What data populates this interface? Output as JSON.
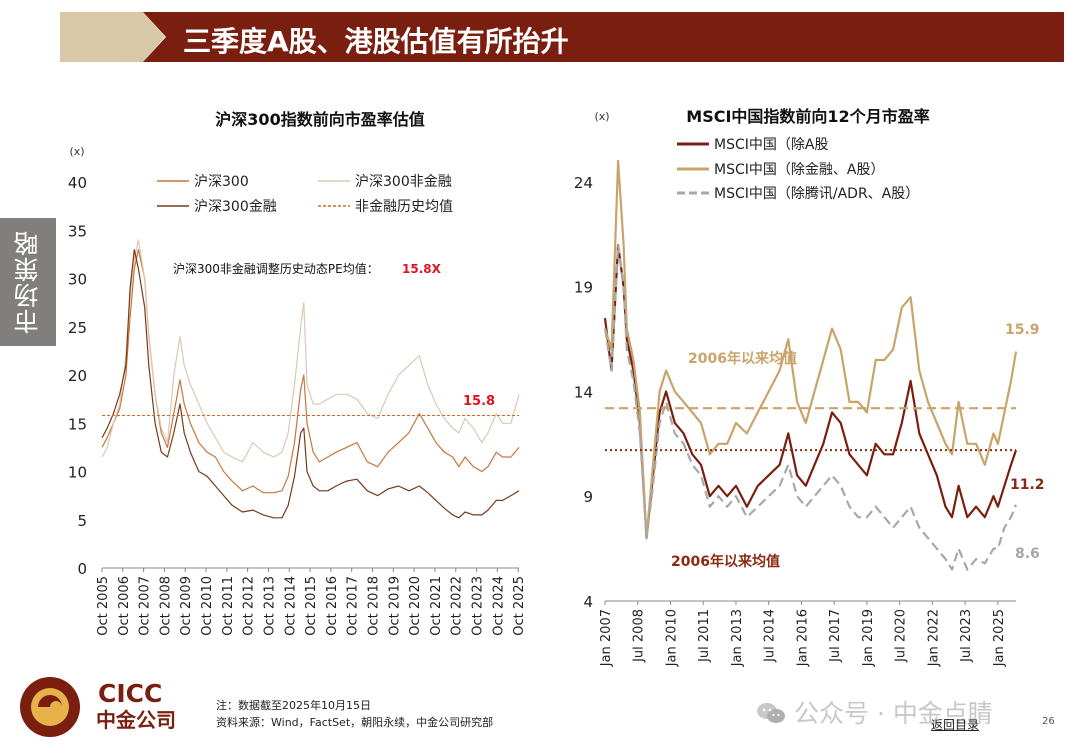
{
  "slide": {
    "title": "三季度A股、港股估值有所抬升",
    "side_tab": "市场策略",
    "notes": [
      "注：数据截至2025年10月15日",
      "资料来源：Wind，FactSet，朝阳永续，中金公司研究部"
    ],
    "logo": {
      "en": "CICC",
      "cn": "中金公司"
    },
    "watermark": "公众号 · 中金点睛",
    "return_link": "返回目录",
    "page_number": "26",
    "colors": {
      "title_bar": "#7a1f0f",
      "title_tab": "#d8c8a8",
      "side_tab": "#807f7e"
    }
  },
  "chart_data": [
    {
      "type": "line",
      "title": "沪深300指数前向市盈率估值",
      "ylabel": "(x)",
      "xlabel": "",
      "ylim": [
        0,
        40
      ],
      "yticks": [
        0,
        5,
        10,
        15,
        20,
        25,
        30,
        35,
        40
      ],
      "xlim": [
        2005.75,
        2025.79
      ],
      "xtick_values": [
        2005.75,
        2006.75,
        2007.75,
        2008.75,
        2009.75,
        2010.75,
        2011.75,
        2012.75,
        2013.75,
        2014.75,
        2015.75,
        2016.75,
        2017.75,
        2018.75,
        2019.75,
        2020.75,
        2021.75,
        2022.75,
        2023.75,
        2024.75,
        2025.75
      ],
      "xtick_labels": [
        "Oct 2005",
        "Oct 2006",
        "Oct 2007",
        "Oct 2008",
        "Oct 2009",
        "Oct 2010",
        "Oct 2011",
        "Oct 2012",
        "Oct 2013",
        "Oct 2014",
        "Oct 2015",
        "Oct 2016",
        "Oct 2017",
        "Oct 2018",
        "Oct 2019",
        "Oct 2020",
        "Oct 2021",
        "Oct 2022",
        "Oct 2023",
        "Oct 2024",
        "Oct 2025"
      ],
      "legend": [
        "沪深300",
        "沪深300非金融",
        "沪深300金融",
        "非金融历史均值"
      ],
      "annotation": {
        "text": "沪深300非金融调整历史动态PE均值：",
        "value": "15.8X"
      },
      "avg_label": "15.8",
      "series": [
        {
          "name": "沪深300",
          "color": "#c8763a",
          "width": 1.2,
          "x": [
            2005.75,
            2006.0,
            2006.3,
            2006.6,
            2006.9,
            2007.1,
            2007.3,
            2007.5,
            2007.8,
            2008.0,
            2008.3,
            2008.6,
            2008.9,
            2009.2,
            2009.5,
            2009.7,
            2010.0,
            2010.4,
            2010.8,
            2011.2,
            2011.6,
            2012.0,
            2012.5,
            2013.0,
            2013.5,
            2014.0,
            2014.4,
            2014.7,
            2015.0,
            2015.3,
            2015.45,
            2015.6,
            2015.9,
            2016.2,
            2016.6,
            2017.0,
            2017.5,
            2018.0,
            2018.5,
            2019.0,
            2019.5,
            2020.0,
            2020.5,
            2021.0,
            2021.4,
            2021.8,
            2022.2,
            2022.6,
            2022.9,
            2023.2,
            2023.6,
            2024.0,
            2024.3,
            2024.7,
            2025.0,
            2025.4,
            2025.79
          ],
          "y": [
            12.5,
            13.5,
            15,
            16.5,
            20,
            26,
            31,
            33,
            30,
            24,
            18,
            14,
            12.5,
            16,
            19.5,
            17,
            15,
            13,
            12,
            11.5,
            10,
            9,
            8,
            8.5,
            7.8,
            7.8,
            8,
            9.5,
            13,
            18.5,
            20,
            15,
            12,
            11,
            11.5,
            12,
            12.5,
            13,
            11,
            10.5,
            12,
            13,
            14,
            16,
            14.5,
            13,
            12,
            11.5,
            10.5,
            11.5,
            10.5,
            10,
            10.5,
            12,
            11.5,
            11.5,
            12.5
          ]
        },
        {
          "name": "沪深300非金融",
          "color": "#d9c9b3",
          "width": 1.2,
          "x": [
            2005.75,
            2006.0,
            2006.3,
            2006.6,
            2006.9,
            2007.1,
            2007.3,
            2007.5,
            2007.8,
            2008.0,
            2008.3,
            2008.6,
            2008.9,
            2009.2,
            2009.5,
            2009.7,
            2010.0,
            2010.4,
            2010.8,
            2011.2,
            2011.6,
            2012.0,
            2012.5,
            2013.0,
            2013.5,
            2014.0,
            2014.4,
            2014.7,
            2015.0,
            2015.3,
            2015.45,
            2015.6,
            2015.9,
            2016.2,
            2016.6,
            2017.0,
            2017.5,
            2018.0,
            2018.5,
            2019.0,
            2019.5,
            2020.0,
            2020.5,
            2021.0,
            2021.4,
            2021.8,
            2022.2,
            2022.6,
            2022.9,
            2023.2,
            2023.6,
            2024.0,
            2024.3,
            2024.7,
            2025.0,
            2025.4,
            2025.79
          ],
          "y": [
            11.5,
            12.5,
            15,
            17,
            22,
            28,
            32,
            34,
            30,
            24,
            18,
            14.5,
            13,
            20,
            24,
            21,
            19,
            17,
            15,
            13.5,
            12,
            11.5,
            11,
            13,
            12,
            11.5,
            12,
            14,
            19,
            25,
            27.5,
            19,
            17,
            17,
            17.5,
            18,
            18,
            17.5,
            16,
            15.5,
            18,
            20,
            21,
            22,
            19,
            17,
            15.5,
            14.5,
            14,
            15.5,
            14.5,
            13,
            14,
            16,
            15,
            15,
            18
          ]
        },
        {
          "name": "沪深300金融",
          "color": "#7a3a18",
          "width": 1.2,
          "x": [
            2005.75,
            2006.0,
            2006.3,
            2006.6,
            2006.9,
            2007.1,
            2007.3,
            2007.5,
            2007.8,
            2008.0,
            2008.3,
            2008.6,
            2008.9,
            2009.2,
            2009.5,
            2009.7,
            2010.0,
            2010.4,
            2010.8,
            2011.2,
            2011.6,
            2012.0,
            2012.5,
            2013.0,
            2013.5,
            2014.0,
            2014.4,
            2014.7,
            2015.0,
            2015.3,
            2015.45,
            2015.6,
            2015.9,
            2016.2,
            2016.6,
            2017.0,
            2017.5,
            2018.0,
            2018.5,
            2019.0,
            2019.5,
            2020.0,
            2020.5,
            2021.0,
            2021.4,
            2021.8,
            2022.2,
            2022.6,
            2022.9,
            2023.2,
            2023.6,
            2024.0,
            2024.3,
            2024.7,
            2025.0,
            2025.4,
            2025.79
          ],
          "y": [
            13.5,
            14.5,
            16,
            18,
            21,
            29,
            33,
            31,
            27,
            21,
            15,
            12,
            11.5,
            14,
            17,
            14,
            12,
            10,
            9.5,
            8.5,
            7.5,
            6.5,
            5.8,
            6,
            5.5,
            5.2,
            5.2,
            6.5,
            9.5,
            14,
            14.5,
            10,
            8.5,
            8,
            8,
            8.5,
            9,
            9.2,
            8,
            7.5,
            8.2,
            8.5,
            8,
            8.5,
            7.8,
            7,
            6.2,
            5.5,
            5.2,
            5.8,
            5.5,
            5.5,
            6,
            7,
            7,
            7.5,
            8
          ]
        },
        {
          "name": "非金融历史均值",
          "color": "#d06a2a",
          "width": 1,
          "dashed": true,
          "x": [
            2005.75,
            2025.79
          ],
          "y": [
            15.8,
            15.8
          ]
        }
      ]
    },
    {
      "type": "line",
      "title": "MSCI中国指数前向12个月市盈率",
      "ylabel": "(x)",
      "xlabel": "",
      "ylim": [
        4,
        26
      ],
      "yticks": [
        4,
        9,
        14,
        19,
        24
      ],
      "xlim": [
        2007.0,
        2025.83
      ],
      "xtick_values": [
        2007.0,
        2008.5,
        2010.0,
        2011.5,
        2013.0,
        2014.5,
        2016.0,
        2017.5,
        2019.0,
        2020.5,
        2022.0,
        2023.5,
        2025.0
      ],
      "xtick_labels": [
        "Jan 2007",
        "Jul 2008",
        "Jan 2010",
        "Jul 2011",
        "Jan 2013",
        "Jul 2014",
        "Jan 2016",
        "Jul 2017",
        "Jan 2019",
        "Jul 2020",
        "Jan 2022",
        "Jul 2023",
        "Jan 2025"
      ],
      "legend": [
        "MSCI中国（除A股",
        "MSCI中国（除金融、A股）",
        "MSCI中国（除腾讯/ADR、A股）"
      ],
      "annotations": [
        {
          "text": "2006年以来均值",
          "color": "#c9a46a"
        },
        {
          "text": "2006年以来均值",
          "color": "#8b2a12"
        }
      ],
      "end_labels": [
        {
          "text": "15.9",
          "color": "#c9a46a"
        },
        {
          "text": "11.2",
          "color": "#8b2a12"
        },
        {
          "text": "8.6",
          "color": "#a8a8a8"
        }
      ],
      "series": [
        {
          "name": "MSCI中国（除A股",
          "color": "#7a1f0f",
          "width": 2.2,
          "x": [
            2007.0,
            2007.3,
            2007.6,
            2007.85,
            2008.0,
            2008.3,
            2008.6,
            2008.9,
            2009.2,
            2009.5,
            2009.8,
            2010.2,
            2010.6,
            2011.0,
            2011.4,
            2011.8,
            2012.2,
            2012.6,
            2013.0,
            2013.5,
            2014.0,
            2014.5,
            2015.0,
            2015.4,
            2015.8,
            2016.2,
            2016.6,
            2017.0,
            2017.4,
            2017.8,
            2018.2,
            2018.6,
            2019.0,
            2019.4,
            2019.8,
            2020.2,
            2020.6,
            2021.0,
            2021.4,
            2021.8,
            2022.2,
            2022.6,
            2022.9,
            2023.2,
            2023.6,
            2024.0,
            2024.4,
            2024.8,
            2025.0,
            2025.3,
            2025.6,
            2025.83
          ],
          "y": [
            17.5,
            15,
            21,
            19,
            16.5,
            15,
            12.5,
            7,
            10,
            13,
            14,
            12.5,
            12,
            11,
            10.5,
            9,
            9.5,
            9,
            9.5,
            8.5,
            9.5,
            10,
            10.5,
            12,
            10,
            9.5,
            10.5,
            11.5,
            13,
            12.5,
            11,
            10.5,
            10,
            11.5,
            11,
            11,
            12.5,
            14.5,
            12,
            11,
            10,
            8.5,
            8,
            9.5,
            8,
            8.5,
            8,
            9,
            8.5,
            9.5,
            10.5,
            11.2
          ]
        },
        {
          "name": "MSCI中国（除金融、A股）",
          "color": "#c9a46a",
          "width": 2.2,
          "x": [
            2007.0,
            2007.3,
            2007.6,
            2007.85,
            2008.0,
            2008.3,
            2008.6,
            2008.9,
            2009.2,
            2009.5,
            2009.8,
            2010.2,
            2010.6,
            2011.0,
            2011.4,
            2011.8,
            2012.2,
            2012.6,
            2013.0,
            2013.5,
            2014.0,
            2014.5,
            2015.0,
            2015.4,
            2015.8,
            2016.2,
            2016.6,
            2017.0,
            2017.4,
            2017.8,
            2018.2,
            2018.6,
            2019.0,
            2019.4,
            2019.8,
            2020.2,
            2020.6,
            2021.0,
            2021.4,
            2021.8,
            2022.2,
            2022.6,
            2022.9,
            2023.2,
            2023.6,
            2024.0,
            2024.4,
            2024.8,
            2025.0,
            2025.3,
            2025.6,
            2025.83
          ],
          "y": [
            17,
            16,
            25,
            21,
            17,
            15.5,
            13,
            7,
            10.5,
            14,
            15,
            14,
            13.5,
            13,
            12.5,
            11,
            11.5,
            11.5,
            12.5,
            12,
            13,
            14,
            15,
            16.5,
            13.5,
            12.5,
            14,
            15.5,
            17,
            16,
            13.5,
            13.5,
            13,
            15.5,
            15.5,
            16,
            18,
            18.5,
            15,
            13.5,
            12.5,
            11.5,
            11,
            13.5,
            11.5,
            11.5,
            10.5,
            12,
            11.5,
            13,
            14.5,
            15.9
          ]
        },
        {
          "name": "MSCI中国（除腾讯/ADR、A股）",
          "color": "#a8a8a8",
          "width": 2.2,
          "dashed": true,
          "x": [
            2007.0,
            2007.3,
            2007.6,
            2007.85,
            2008.0,
            2008.3,
            2008.6,
            2008.9,
            2009.2,
            2009.5,
            2009.8,
            2010.2,
            2010.6,
            2011.0,
            2011.4,
            2011.8,
            2012.2,
            2012.6,
            2013.0,
            2013.5,
            2014.0,
            2014.5,
            2015.0,
            2015.4,
            2015.8,
            2016.2,
            2016.6,
            2017.0,
            2017.4,
            2017.8,
            2018.2,
            2018.6,
            2019.0,
            2019.4,
            2019.8,
            2020.2,
            2020.6,
            2021.0,
            2021.4,
            2021.8,
            2022.2,
            2022.6,
            2022.9,
            2023.2,
            2023.6,
            2024.0,
            2024.4,
            2024.8,
            2025.0,
            2025.3,
            2025.6,
            2025.83
          ],
          "y": [
            17,
            15,
            21,
            19,
            16,
            14.5,
            12,
            7,
            9.5,
            12.5,
            13.5,
            12,
            11.5,
            10.5,
            10,
            8.5,
            9,
            8.5,
            9,
            8,
            8.5,
            9,
            9.5,
            10.5,
            9,
            8.5,
            9,
            9.5,
            10,
            9.5,
            8.5,
            8,
            8,
            8.5,
            8,
            7.5,
            8,
            8.5,
            7.5,
            7,
            6.5,
            6,
            5.5,
            6.5,
            5.5,
            6,
            5.8,
            6.5,
            6.5,
            7.5,
            8,
            8.6
          ]
        },
        {
          "name": "2006年以来均值（除金融、A股）",
          "color": "#c9a46a",
          "width": 2.2,
          "dashed": true,
          "x": [
            2007.0,
            2025.83
          ],
          "y": [
            13.2,
            13.2
          ]
        },
        {
          "name": "2006年以来均值（除A股）",
          "color": "#8b2a12",
          "width": 2,
          "dotted": true,
          "x": [
            2007.0,
            2025.83
          ],
          "y": [
            11.2,
            11.2
          ]
        }
      ]
    }
  ]
}
